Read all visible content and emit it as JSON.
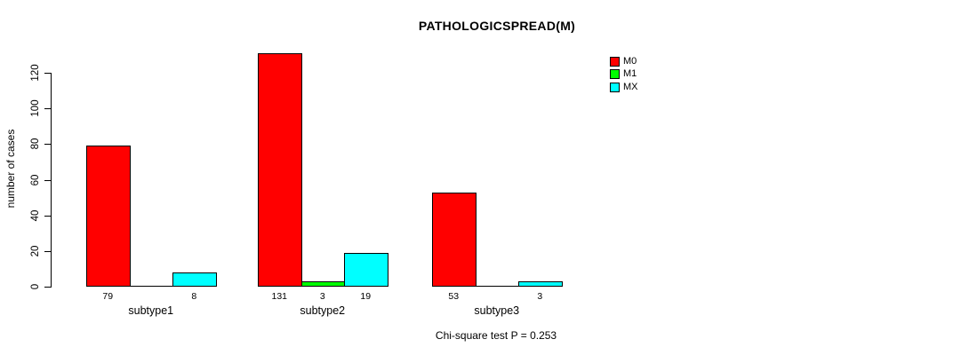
{
  "chart_data": {
    "type": "bar",
    "title": "PATHOLOGICSPREAD(M)",
    "categories": [
      "subtype1",
      "subtype2",
      "subtype3"
    ],
    "series": [
      {
        "name": "M0",
        "color": "#FF0000",
        "values": [
          79,
          131,
          53
        ]
      },
      {
        "name": "M1",
        "color": "#00FF00",
        "values": [
          0,
          3,
          0
        ]
      },
      {
        "name": "MX",
        "color": "#00FFFF",
        "values": [
          8,
          19,
          3
        ]
      }
    ],
    "bar_labels": [
      [
        "79",
        "",
        "8"
      ],
      [
        "131",
        "3",
        "19"
      ],
      [
        "53",
        "",
        "3"
      ]
    ],
    "xlabel": "",
    "ylabel": "number of cases",
    "yticks": [
      0,
      20,
      40,
      60,
      80,
      100,
      120
    ],
    "ylim": [
      0,
      135
    ],
    "grid": false,
    "legend_position": "top-right",
    "annotation": "Chi-square test P = 0.253"
  },
  "colors": {
    "axis": "#000000",
    "background": "#FFFFFF",
    "bar_border": "#000000"
  }
}
